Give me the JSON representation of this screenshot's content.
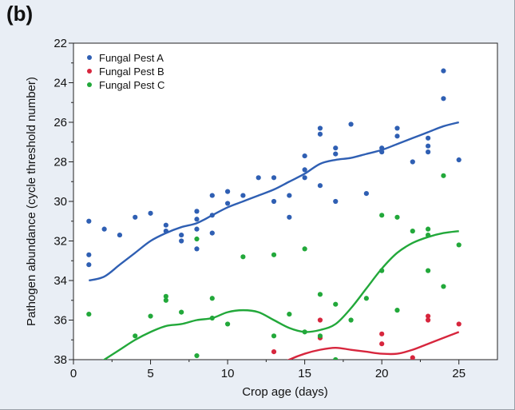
{
  "panel_label": "(b)",
  "chart_data": {
    "type": "scatter",
    "xlabel": "Crop age (days)",
    "ylabel": "Pathogen abundance (cycle threshold number)",
    "xlim": [
      0,
      27.5
    ],
    "ylim": [
      38,
      22
    ],
    "y_inverted": true,
    "x_ticks": [
      0,
      5,
      10,
      15,
      20,
      25
    ],
    "y_ticks": [
      22,
      24,
      26,
      28,
      30,
      32,
      34,
      36,
      38
    ],
    "grid": false,
    "legend_position": "top-left",
    "series": [
      {
        "name": "Fungal Pest A",
        "color": "#2f5fb3",
        "points": [
          [
            1,
            31.0
          ],
          [
            1,
            32.7
          ],
          [
            1,
            33.2
          ],
          [
            2,
            31.4
          ],
          [
            3,
            31.7
          ],
          [
            4,
            30.8
          ],
          [
            5,
            30.6
          ],
          [
            6,
            31.2
          ],
          [
            6,
            31.5
          ],
          [
            7,
            31.7
          ],
          [
            7,
            32.0
          ],
          [
            8,
            30.5
          ],
          [
            8,
            30.9
          ],
          [
            8,
            31.4
          ],
          [
            8,
            32.4
          ],
          [
            9,
            29.7
          ],
          [
            9,
            30.7
          ],
          [
            9,
            31.6
          ],
          [
            10,
            29.5
          ],
          [
            10,
            30.1
          ],
          [
            11,
            29.7
          ],
          [
            12,
            28.8
          ],
          [
            13,
            28.8
          ],
          [
            13,
            30.0
          ],
          [
            14,
            29.7
          ],
          [
            14,
            30.8
          ],
          [
            15,
            27.7
          ],
          [
            15,
            28.4
          ],
          [
            15,
            28.8
          ],
          [
            16,
            26.3
          ],
          [
            16,
            26.6
          ],
          [
            16,
            29.2
          ],
          [
            17,
            27.3
          ],
          [
            17,
            27.6
          ],
          [
            17,
            30.0
          ],
          [
            18,
            26.1
          ],
          [
            19,
            29.6
          ],
          [
            20,
            27.3
          ],
          [
            20,
            27.5
          ],
          [
            21,
            26.3
          ],
          [
            21,
            26.7
          ],
          [
            22,
            28.0
          ],
          [
            23,
            26.8
          ],
          [
            23,
            27.2
          ],
          [
            23,
            27.5
          ],
          [
            24,
            23.4
          ],
          [
            24,
            24.8
          ],
          [
            25,
            27.9
          ]
        ],
        "trend": [
          [
            1,
            34.0
          ],
          [
            2,
            33.8
          ],
          [
            3,
            33.2
          ],
          [
            4,
            32.6
          ],
          [
            5,
            32.0
          ],
          [
            6,
            31.6
          ],
          [
            7,
            31.3
          ],
          [
            8,
            31.1
          ],
          [
            9,
            30.7
          ],
          [
            10,
            30.3
          ],
          [
            11,
            30.0
          ],
          [
            12,
            29.7
          ],
          [
            13,
            29.4
          ],
          [
            14,
            29.0
          ],
          [
            15,
            28.6
          ],
          [
            16,
            28.1
          ],
          [
            17,
            27.9
          ],
          [
            18,
            27.8
          ],
          [
            19,
            27.6
          ],
          [
            20,
            27.4
          ],
          [
            21,
            27.1
          ],
          [
            22,
            26.8
          ],
          [
            23,
            26.5
          ],
          [
            24,
            26.2
          ],
          [
            25,
            26.0
          ]
        ]
      },
      {
        "name": "Fungal Pest B",
        "color": "#d7263d",
        "points": [
          [
            13,
            37.6
          ],
          [
            16,
            36.0
          ],
          [
            16,
            36.9
          ],
          [
            20,
            36.7
          ],
          [
            20,
            37.2
          ],
          [
            22,
            37.9
          ],
          [
            23,
            35.8
          ],
          [
            23,
            36.0
          ],
          [
            25,
            36.2
          ]
        ],
        "trend": [
          [
            13,
            38.4
          ],
          [
            14,
            38.0
          ],
          [
            15,
            37.7
          ],
          [
            16,
            37.5
          ],
          [
            17,
            37.4
          ],
          [
            18,
            37.5
          ],
          [
            19,
            37.6
          ],
          [
            20,
            37.7
          ],
          [
            21,
            37.7
          ],
          [
            22,
            37.5
          ],
          [
            23,
            37.2
          ],
          [
            24,
            36.9
          ],
          [
            25,
            36.6
          ]
        ]
      },
      {
        "name": "Fungal Pest C",
        "color": "#22a83a",
        "points": [
          [
            1,
            35.7
          ],
          [
            4,
            36.8
          ],
          [
            5,
            35.8
          ],
          [
            6,
            34.8
          ],
          [
            6,
            35.0
          ],
          [
            7,
            35.6
          ],
          [
            8,
            31.9
          ],
          [
            8,
            37.8
          ],
          [
            9,
            34.9
          ],
          [
            9,
            35.9
          ],
          [
            10,
            36.2
          ],
          [
            11,
            32.8
          ],
          [
            13,
            32.7
          ],
          [
            13,
            36.8
          ],
          [
            14,
            35.7
          ],
          [
            15,
            32.4
          ],
          [
            15,
            36.6
          ],
          [
            16,
            34.7
          ],
          [
            16,
            36.8
          ],
          [
            17,
            35.2
          ],
          [
            17,
            38.0
          ],
          [
            18,
            36.0
          ],
          [
            19,
            34.9
          ],
          [
            20,
            30.7
          ],
          [
            20,
            33.5
          ],
          [
            21,
            30.8
          ],
          [
            21,
            35.5
          ],
          [
            22,
            31.5
          ],
          [
            23,
            31.4
          ],
          [
            23,
            31.7
          ],
          [
            23,
            33.5
          ],
          [
            24,
            28.7
          ],
          [
            24,
            34.3
          ],
          [
            25,
            32.2
          ]
        ],
        "trend": [
          [
            1,
            38.5
          ],
          [
            2,
            38.0
          ],
          [
            3,
            37.5
          ],
          [
            4,
            37.0
          ],
          [
            5,
            36.6
          ],
          [
            6,
            36.3
          ],
          [
            7,
            36.2
          ],
          [
            8,
            36.0
          ],
          [
            9,
            35.9
          ],
          [
            10,
            35.6
          ],
          [
            11,
            35.5
          ],
          [
            12,
            35.6
          ],
          [
            13,
            36.0
          ],
          [
            14,
            36.4
          ],
          [
            15,
            36.6
          ],
          [
            16,
            36.5
          ],
          [
            17,
            36.2
          ],
          [
            18,
            35.4
          ],
          [
            19,
            34.4
          ],
          [
            20,
            33.4
          ],
          [
            21,
            32.6
          ],
          [
            22,
            32.1
          ],
          [
            23,
            31.8
          ],
          [
            24,
            31.6
          ],
          [
            25,
            31.5
          ]
        ]
      }
    ]
  }
}
